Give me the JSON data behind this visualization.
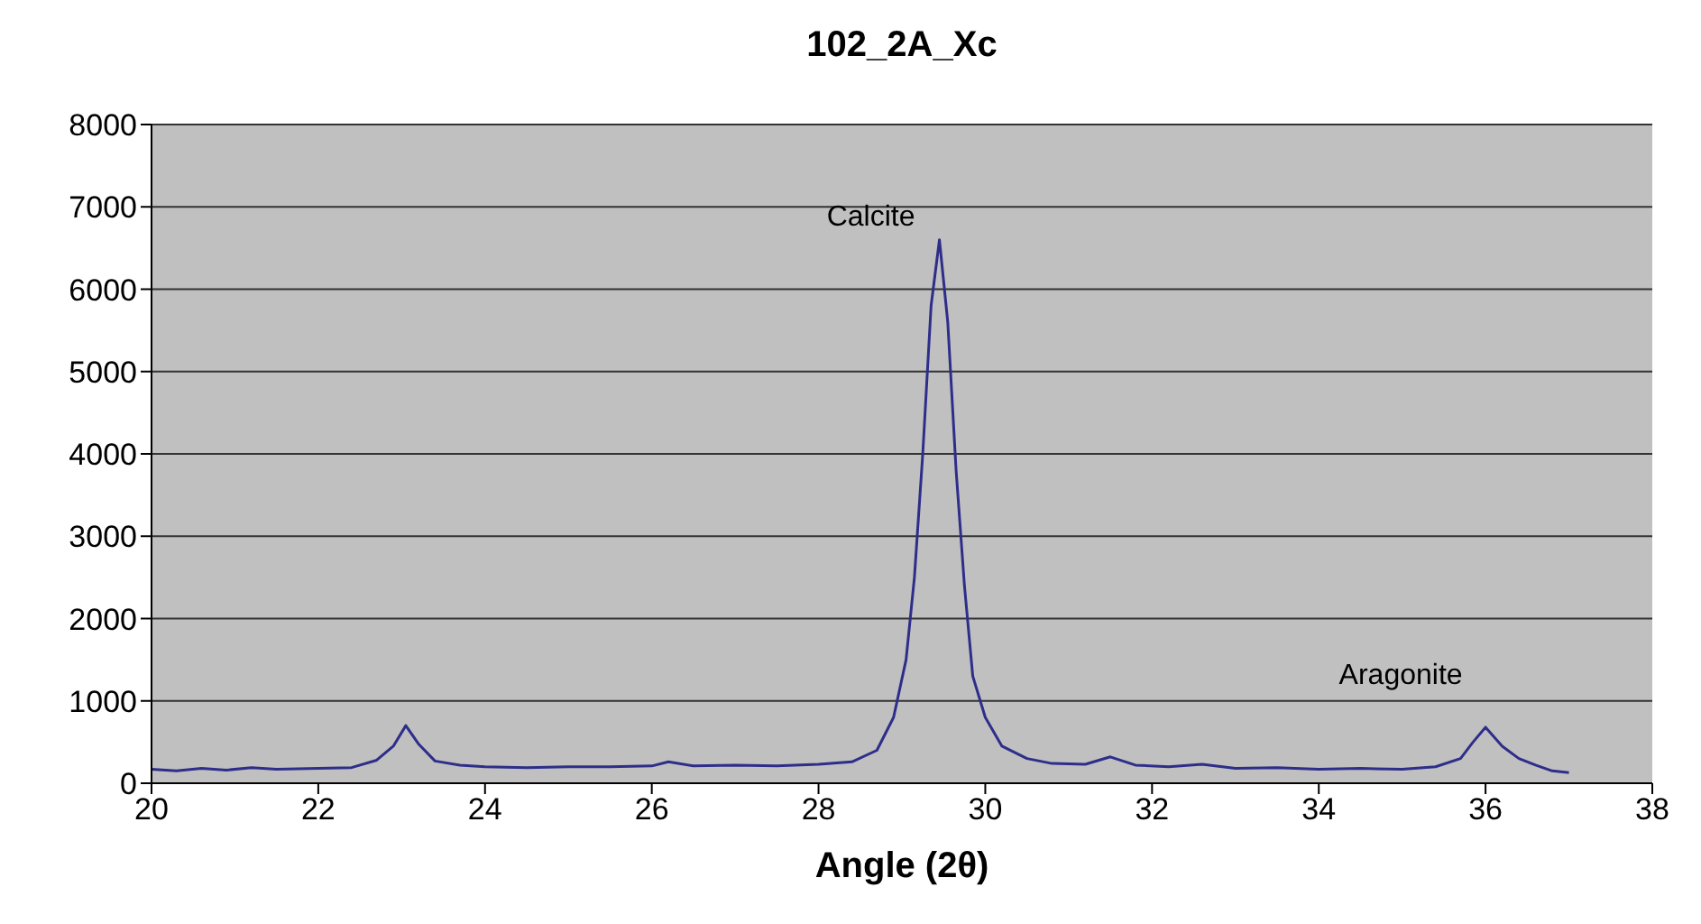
{
  "chart_data": {
    "type": "line",
    "title": "102_2A_Xc",
    "xlabel": "Angle (2θ)",
    "x": [
      20.0,
      20.3,
      20.6,
      20.9,
      21.2,
      21.5,
      22.0,
      22.4,
      22.7,
      22.9,
      23.05,
      23.2,
      23.4,
      23.7,
      24.0,
      24.5,
      25.0,
      25.5,
      26.0,
      26.2,
      26.5,
      27.0,
      27.5,
      28.0,
      28.4,
      28.7,
      28.9,
      29.05,
      29.15,
      29.25,
      29.35,
      29.45,
      29.55,
      29.65,
      29.75,
      29.85,
      30.0,
      30.2,
      30.5,
      30.8,
      31.2,
      31.5,
      31.8,
      32.2,
      32.6,
      33.0,
      33.5,
      34.0,
      34.5,
      35.0,
      35.4,
      35.7,
      35.85,
      36.0,
      36.2,
      36.4,
      36.6,
      36.8,
      37.0
    ],
    "series": [
      {
        "color": "#2e2e8a",
        "values": [
          170,
          150,
          180,
          160,
          190,
          170,
          180,
          190,
          280,
          450,
          700,
          480,
          270,
          220,
          200,
          190,
          200,
          200,
          210,
          260,
          210,
          220,
          210,
          230,
          260,
          400,
          800,
          1500,
          2500,
          4000,
          5800,
          6600,
          5600,
          3800,
          2400,
          1300,
          800,
          450,
          300,
          240,
          230,
          320,
          220,
          200,
          230,
          180,
          190,
          170,
          180,
          170,
          200,
          300,
          500,
          680,
          450,
          300,
          220,
          150,
          130
        ]
      }
    ],
    "xlim": [
      20,
      38
    ],
    "xticks": [
      20,
      22,
      24,
      26,
      28,
      30,
      32,
      34,
      36,
      38
    ],
    "ylim": [
      0,
      8000
    ],
    "yticks": [
      0,
      1000,
      2000,
      3000,
      4000,
      5000,
      6000,
      7000,
      8000
    ],
    "grid": "y",
    "legend": false,
    "marker": "none",
    "line_style": "solid",
    "annotations": [
      {
        "text": "Calcite",
        "x": 29.45,
        "y": 6600
      },
      {
        "text": "Aragonite",
        "x": 36.0,
        "y": 680
      }
    ]
  }
}
